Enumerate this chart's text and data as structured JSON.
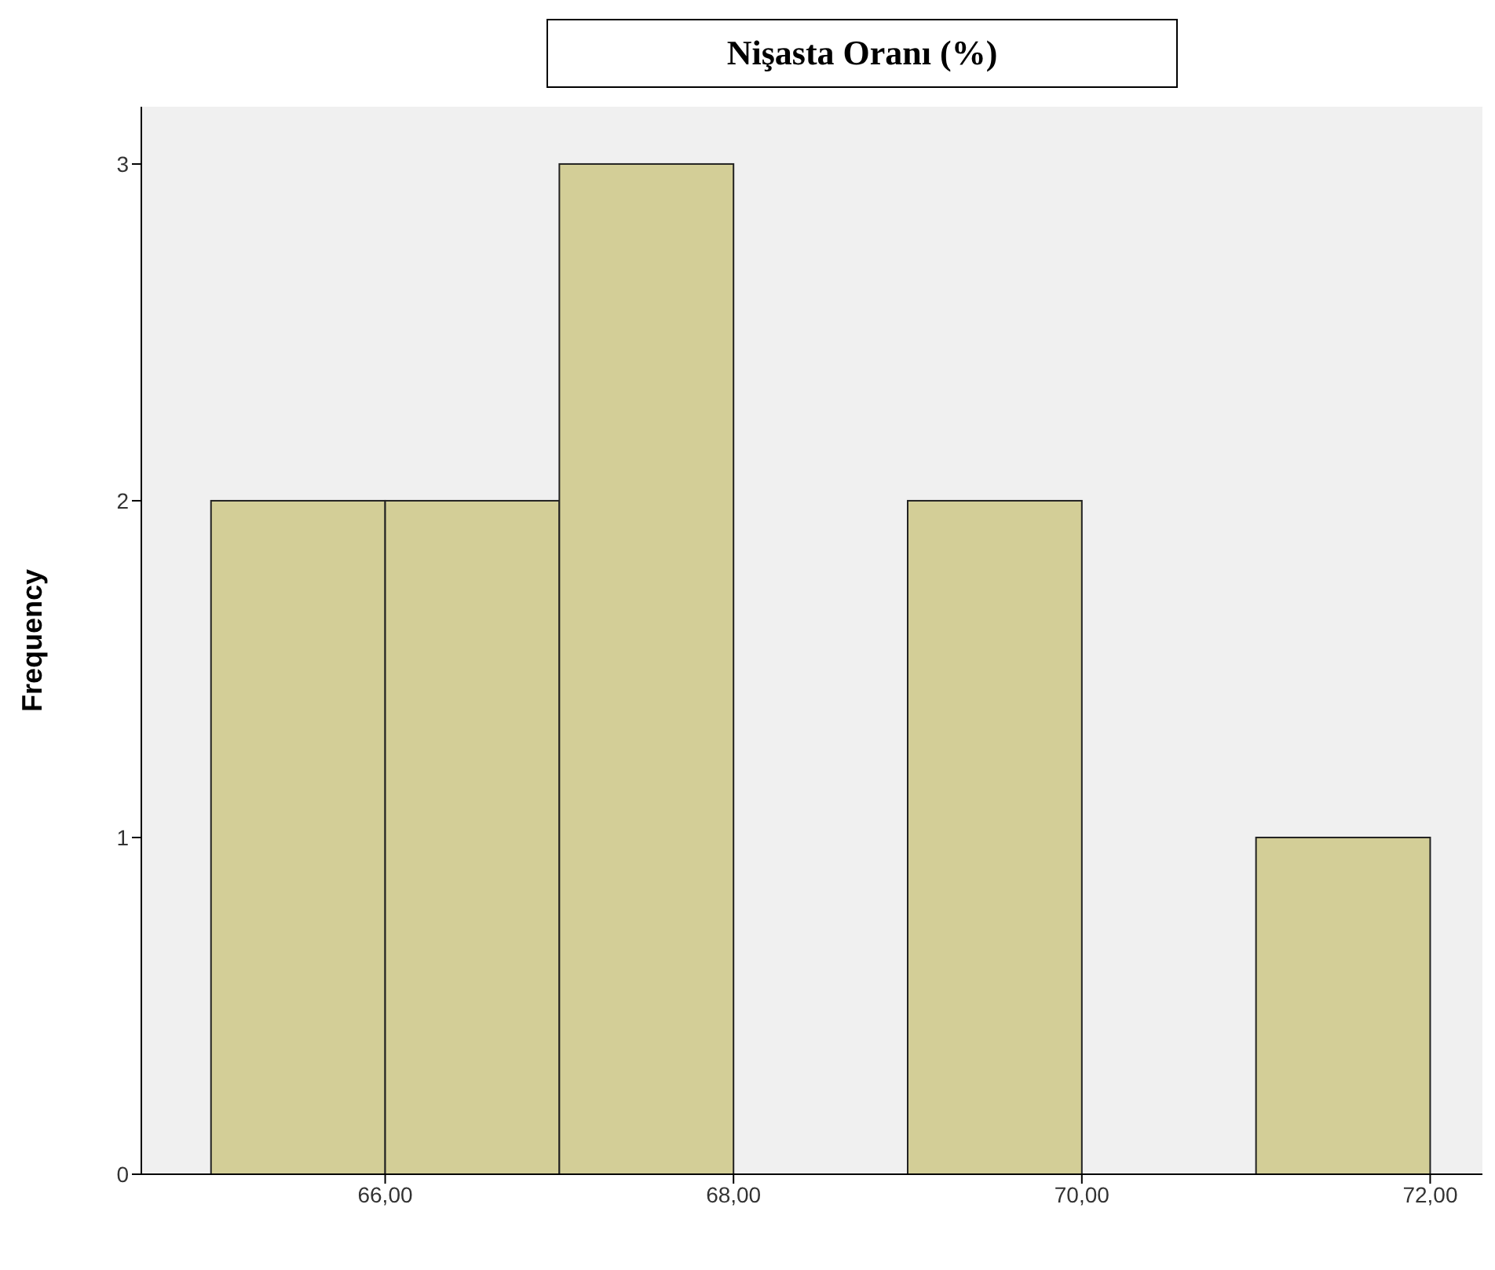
{
  "chart_data": {
    "type": "histogram",
    "title": "Nişasta Oranı (%)",
    "ylabel": "Frequency",
    "bins": [
      65,
      66,
      67,
      68,
      69,
      70,
      71,
      72
    ],
    "values": [
      2,
      2,
      3,
      0,
      2,
      0,
      1
    ],
    "color": "#d3ce97",
    "xlim": [
      64.6,
      72.3
    ],
    "xticks": [
      {
        "value": 66,
        "label": "66,00"
      },
      {
        "value": 68,
        "label": "68,00"
      },
      {
        "value": 70,
        "label": "70,00"
      },
      {
        "value": 72,
        "label": "72,00"
      }
    ],
    "ylim": [
      0,
      3.17
    ],
    "yticks": [
      0,
      1,
      2,
      3
    ],
    "legend": false
  }
}
